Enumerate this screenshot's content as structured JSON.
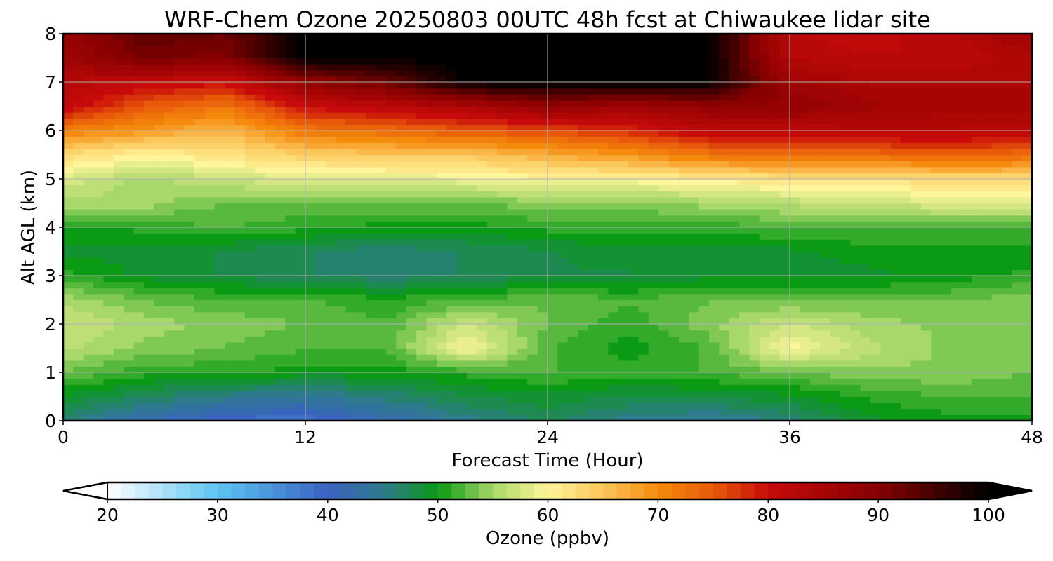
{
  "chart_data": {
    "type": "heatmap",
    "title": "WRF-Chem Ozone  20250803 00UTC 48h fcst at Chiwaukee lidar site",
    "xlabel": "Forecast Time (Hour)",
    "ylabel": "Alt AGL (km)",
    "xlim": [
      0,
      48
    ],
    "ylim": [
      0,
      8
    ],
    "xticks": [
      0,
      12,
      24,
      36,
      48
    ],
    "yticks": [
      0,
      1,
      2,
      3,
      4,
      5,
      6,
      7,
      8
    ],
    "grid": true,
    "colorbar": {
      "label": "Ozone  (ppbv)",
      "min": 20,
      "max": 100,
      "ticks": [
        20,
        30,
        40,
        50,
        60,
        70,
        80,
        90,
        100
      ],
      "extend": "both",
      "orientation": "horizontal",
      "stops": [
        {
          "v": 20,
          "c": "#ffffff"
        },
        {
          "v": 30,
          "c": "#5cc4f2"
        },
        {
          "v": 40,
          "c": "#3a62c0"
        },
        {
          "v": 45,
          "c": "#2e7a8e"
        },
        {
          "v": 50,
          "c": "#0a9a14"
        },
        {
          "v": 55,
          "c": "#a8d86a"
        },
        {
          "v": 60,
          "c": "#fff59a"
        },
        {
          "v": 65,
          "c": "#fbc65a"
        },
        {
          "v": 70,
          "c": "#f58a0c"
        },
        {
          "v": 75,
          "c": "#e85a0a"
        },
        {
          "v": 80,
          "c": "#c80a0a"
        },
        {
          "v": 90,
          "c": "#860000"
        },
        {
          "v": 100,
          "c": "#000000"
        }
      ]
    },
    "x": [
      0,
      4,
      8,
      12,
      16,
      20,
      24,
      28,
      32,
      36,
      40,
      44,
      48
    ],
    "y": [
      0,
      0.5,
      1,
      1.5,
      2,
      2.5,
      3,
      3.5,
      4,
      4.5,
      5,
      5.5,
      6,
      6.5,
      7,
      7.5,
      8
    ],
    "z": [
      [
        46,
        42,
        39,
        38,
        42,
        45,
        47,
        45,
        44,
        46,
        49,
        50,
        50
      ],
      [
        49,
        47,
        45,
        44,
        46,
        48,
        49,
        48,
        48,
        49,
        51,
        52,
        52
      ],
      [
        53,
        51,
        51,
        50,
        50,
        51,
        52,
        51,
        52,
        53,
        54,
        54,
        53
      ],
      [
        56,
        54,
        53,
        52,
        52,
        60,
        52,
        50,
        52,
        60,
        56,
        54,
        54
      ],
      [
        57,
        55,
        54,
        53,
        52,
        57,
        53,
        51,
        54,
        57,
        55,
        54,
        54
      ],
      [
        55,
        53,
        52,
        52,
        51,
        52,
        53,
        52,
        53,
        53,
        53,
        53,
        54
      ],
      [
        51,
        49,
        48,
        47,
        46,
        47,
        48,
        48,
        49,
        49,
        49,
        50,
        51
      ],
      [
        49,
        49,
        48,
        47,
        46,
        47,
        48,
        49,
        49,
        49,
        50,
        50,
        50
      ],
      [
        50,
        51,
        52,
        51,
        50,
        50,
        51,
        51,
        51,
        52,
        52,
        52,
        52
      ],
      [
        55,
        55,
        53,
        53,
        53,
        53,
        54,
        54,
        55,
        56,
        57,
        58,
        58
      ],
      [
        58,
        55,
        57,
        58,
        58,
        59,
        60,
        60,
        61,
        62,
        62,
        63,
        63
      ],
      [
        63,
        60,
        62,
        64,
        65,
        65,
        67,
        69,
        72,
        73,
        73,
        74,
        73
      ],
      [
        71,
        69,
        66,
        72,
        73,
        75,
        76,
        78,
        82,
        82,
        83,
        83,
        82
      ],
      [
        81,
        75,
        72,
        80,
        82,
        84,
        88,
        86,
        88,
        88,
        86,
        85,
        85
      ],
      [
        83,
        81,
        80,
        88,
        92,
        100,
        100,
        100,
        100,
        86,
        84,
        84,
        84
      ],
      [
        86,
        91,
        90,
        100,
        100,
        100,
        100,
        100,
        100,
        83,
        82,
        82,
        84
      ],
      [
        87,
        93,
        92,
        100,
        100,
        100,
        100,
        100,
        100,
        82,
        81,
        83,
        86
      ]
    ]
  }
}
